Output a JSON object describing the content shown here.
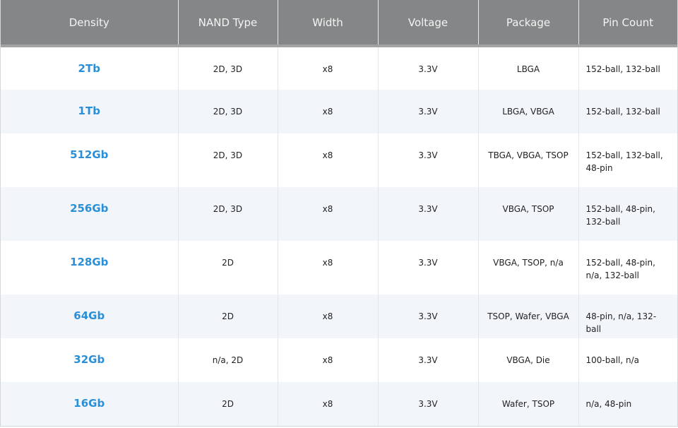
{
  "table": {
    "headers": [
      "Density",
      "NAND Type",
      "Width",
      "Voltage",
      "Package",
      "Pin Count"
    ],
    "rows": [
      [
        "2Tb",
        "2D, 3D",
        "x8",
        "3.3V",
        "LBGA",
        "152-ball, 132-ball"
      ],
      [
        "1Tb",
        "2D, 3D",
        "x8",
        "3.3V",
        "LBGA, VBGA",
        "152-ball, 132-ball"
      ],
      [
        "512Gb",
        "2D, 3D",
        "x8",
        "3.3V",
        "TBGA, VBGA, TSOP",
        "152-ball, 132-ball, 48-pin"
      ],
      [
        "256Gb",
        "2D, 3D",
        "x8",
        "3.3V",
        "VBGA, TSOP",
        "152-ball, 48-pin, 132-ball"
      ],
      [
        "128Gb",
        "2D",
        "x8",
        "3.3V",
        "VBGA, TSOP, n/a",
        "152-ball, 48-pin, n/a, 132-ball"
      ],
      [
        "64Gb",
        "2D",
        "x8",
        "3.3V",
        "TSOP, Wafer, VBGA",
        "48-pin, n/a, 132-ball"
      ],
      [
        "32Gb",
        "n/a, 2D",
        "x8",
        "3.3V",
        "VBGA, Die",
        "100-ball, n/a"
      ],
      [
        "16Gb",
        "2D",
        "x8",
        "3.3V",
        "Wafer, TSOP",
        "n/a, 48-pin"
      ]
    ]
  },
  "colors": {
    "header_bg": "#858687",
    "density_link": "#2b8fd8",
    "alt_row": "#f2f6fa"
  }
}
